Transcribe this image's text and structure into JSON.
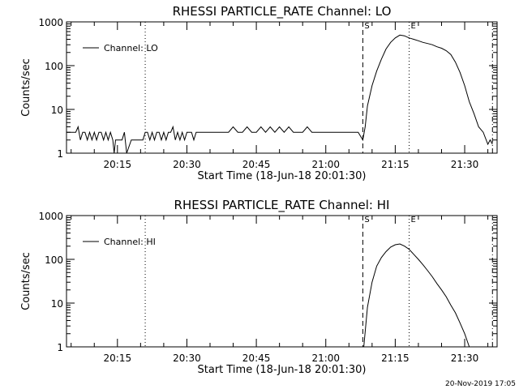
{
  "footer": {
    "timestamp": "20-Nov-2019 17:05"
  },
  "chart_data": [
    {
      "type": "line",
      "title": "RHESSI PARTICLE_RATE Channel: LO",
      "xlabel": "Start Time (18-Jun-18 20:01:30)",
      "ylabel": "Counts/sec",
      "yscale": "log",
      "ylim": [
        1,
        1000
      ],
      "xlim": [
        "20:04",
        "21:37"
      ],
      "grid": false,
      "legend_position": "top-left",
      "series": [
        {
          "name": "Channel: LO",
          "x": [
            "20:04",
            "20:06",
            "20:06.5",
            "20:07",
            "20:07.5",
            "20:08",
            "20:08.5",
            "20:09",
            "20:09.5",
            "20:10",
            "20:10.5",
            "20:11",
            "20:11.5",
            "20:12",
            "20:12.5",
            "20:13",
            "20:13.5",
            "20:14",
            "20:14.3",
            "20:14.6",
            "20:15",
            "20:15.5",
            "20:16",
            "20:16.5",
            "20:17",
            "20:18",
            "20:20",
            "20:20.5",
            "20:21",
            "20:21.5",
            "20:22",
            "20:22.5",
            "20:23",
            "20:23.5",
            "20:24",
            "20:24.5",
            "20:25",
            "20:25.5",
            "20:26",
            "20:26.5",
            "20:27",
            "20:27.5",
            "20:28",
            "20:28.5",
            "20:29",
            "20:29.5",
            "20:30",
            "20:30.5",
            "20:31",
            "20:31.5",
            "20:32",
            "20:33",
            "20:34",
            "20:35",
            "20:36",
            "20:37",
            "20:38",
            "20:39",
            "20:40",
            "20:41",
            "20:42",
            "20:43",
            "20:44",
            "20:45",
            "20:46",
            "20:47",
            "20:48",
            "20:49",
            "20:50",
            "20:51",
            "20:52",
            "20:53",
            "20:54",
            "20:55",
            "20:56",
            "20:57",
            "20:58",
            "20:59",
            "21:00",
            "21:01",
            "21:02",
            "21:03",
            "21:04",
            "21:05",
            "21:06",
            "21:07",
            "21:08",
            "21:08.5",
            "21:09",
            "21:10",
            "21:11",
            "21:12",
            "21:13",
            "21:14",
            "21:15",
            "21:16",
            "21:17",
            "21:18",
            "21:19",
            "21:20",
            "21:21",
            "21:22",
            "21:23",
            "21:24",
            "21:25",
            "21:26",
            "21:27",
            "21:28",
            "21:29",
            "21:30",
            "21:31",
            "21:32",
            "21:33",
            "21:34",
            "21:35",
            "21:35.5",
            "21:36"
          ],
          "values": [
            3,
            3,
            4,
            2,
            3,
            3,
            2,
            3,
            2,
            3,
            2,
            3,
            3,
            2,
            3,
            2,
            3,
            2,
            1,
            2,
            2,
            2,
            2,
            3,
            1,
            2,
            2,
            2,
            3,
            3,
            2,
            3,
            2,
            3,
            3,
            2,
            3,
            2,
            3,
            3,
            4,
            2,
            3,
            2,
            3,
            2,
            3,
            3,
            3,
            2,
            3,
            3,
            3,
            3,
            3,
            3,
            3,
            3,
            4,
            3,
            3,
            4,
            3,
            3,
            4,
            3,
            4,
            3,
            4,
            3,
            4,
            3,
            3,
            3,
            4,
            3,
            3,
            3,
            3,
            3,
            3,
            3,
            3,
            3,
            3,
            3,
            2,
            4,
            12,
            35,
            75,
            140,
            240,
            340,
            430,
            500,
            480,
            430,
            400,
            370,
            340,
            320,
            300,
            270,
            250,
            220,
            180,
            120,
            70,
            35,
            15,
            8,
            4,
            3,
            1.6,
            2,
            1.6
          ]
        }
      ],
      "markers": [
        {
          "label": "",
          "time": "20:21",
          "style": "dotted"
        },
        {
          "label": "S",
          "time": "21:08",
          "style": "dashed"
        },
        {
          "label": "E",
          "time": "21:18",
          "style": "dotted"
        },
        {
          "label": "",
          "time": "21:36",
          "style": "dash-dot"
        }
      ]
    },
    {
      "type": "line",
      "title": "RHESSI PARTICLE_RATE Channel: HI",
      "xlabel": "Start Time (18-Jun-18 20:01:30)",
      "ylabel": "Counts/sec",
      "yscale": "log",
      "ylim": [
        1,
        1000
      ],
      "xlim": [
        "20:04",
        "21:37"
      ],
      "grid": false,
      "legend_position": "top-left",
      "series": [
        {
          "name": "Channel: HI",
          "x": [
            "21:08.2",
            "21:09",
            "21:10",
            "21:11",
            "21:12",
            "21:13",
            "21:14",
            "21:15",
            "21:16",
            "21:17",
            "21:18",
            "21:19",
            "21:20",
            "21:21",
            "21:22",
            "21:23",
            "21:24",
            "21:25",
            "21:26",
            "21:27",
            "21:28",
            "21:29",
            "21:30",
            "21:31"
          ],
          "values": [
            1,
            8,
            30,
            70,
            110,
            150,
            190,
            215,
            225,
            200,
            170,
            130,
            100,
            75,
            55,
            40,
            28,
            20,
            14,
            9,
            6,
            3.5,
            2,
            1
          ]
        }
      ],
      "markers": [
        {
          "label": "",
          "time": "20:21",
          "style": "dotted"
        },
        {
          "label": "S",
          "time": "21:08",
          "style": "dashed"
        },
        {
          "label": "E",
          "time": "21:18",
          "style": "dotted"
        },
        {
          "label": "",
          "time": "21:36",
          "style": "dash-dot"
        }
      ]
    }
  ],
  "axis": {
    "x_ticks": [
      "20:15",
      "20:30",
      "20:45",
      "21:00",
      "21:15",
      "21:30"
    ],
    "y_ticks": [
      {
        "value": 1,
        "label": "1"
      },
      {
        "value": 10,
        "label": "10"
      },
      {
        "value": 100,
        "label": "100"
      },
      {
        "value": 1000,
        "label": "1000"
      }
    ]
  }
}
